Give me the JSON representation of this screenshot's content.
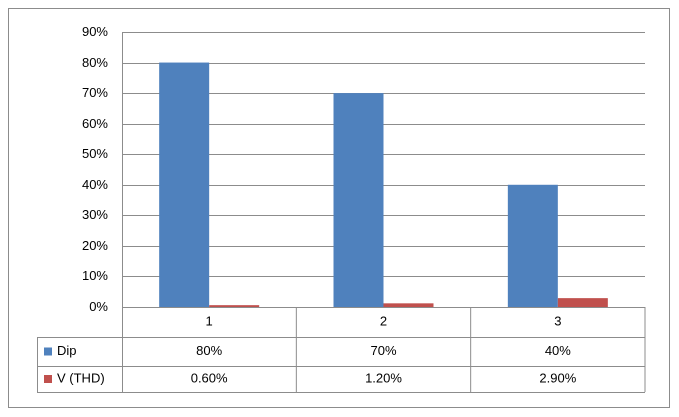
{
  "chart_data": {
    "type": "bar",
    "categories": [
      "1",
      "2",
      "3"
    ],
    "series": [
      {
        "name": "Dip",
        "color": "#4f81bd",
        "values": [
          80,
          70,
          40
        ],
        "value_labels": [
          "80%",
          "70%",
          "40%"
        ]
      },
      {
        "name": "V (THD)",
        "color": "#c0504d",
        "values": [
          0.6,
          1.2,
          2.9
        ],
        "value_labels": [
          "0.60%",
          "1.20%",
          "2.90%"
        ]
      }
    ],
    "ylim": [
      0,
      90
    ],
    "yticks": [
      {
        "value": 0,
        "label": "0%"
      },
      {
        "value": 10,
        "label": "10%"
      },
      {
        "value": 20,
        "label": "20%"
      },
      {
        "value": 30,
        "label": "30%"
      },
      {
        "value": 40,
        "label": "40%"
      },
      {
        "value": 50,
        "label": "50%"
      },
      {
        "value": 60,
        "label": "60%"
      },
      {
        "value": 70,
        "label": "70%"
      },
      {
        "value": 80,
        "label": "80%"
      },
      {
        "value": 90,
        "label": "90%"
      }
    ],
    "grid": true
  }
}
